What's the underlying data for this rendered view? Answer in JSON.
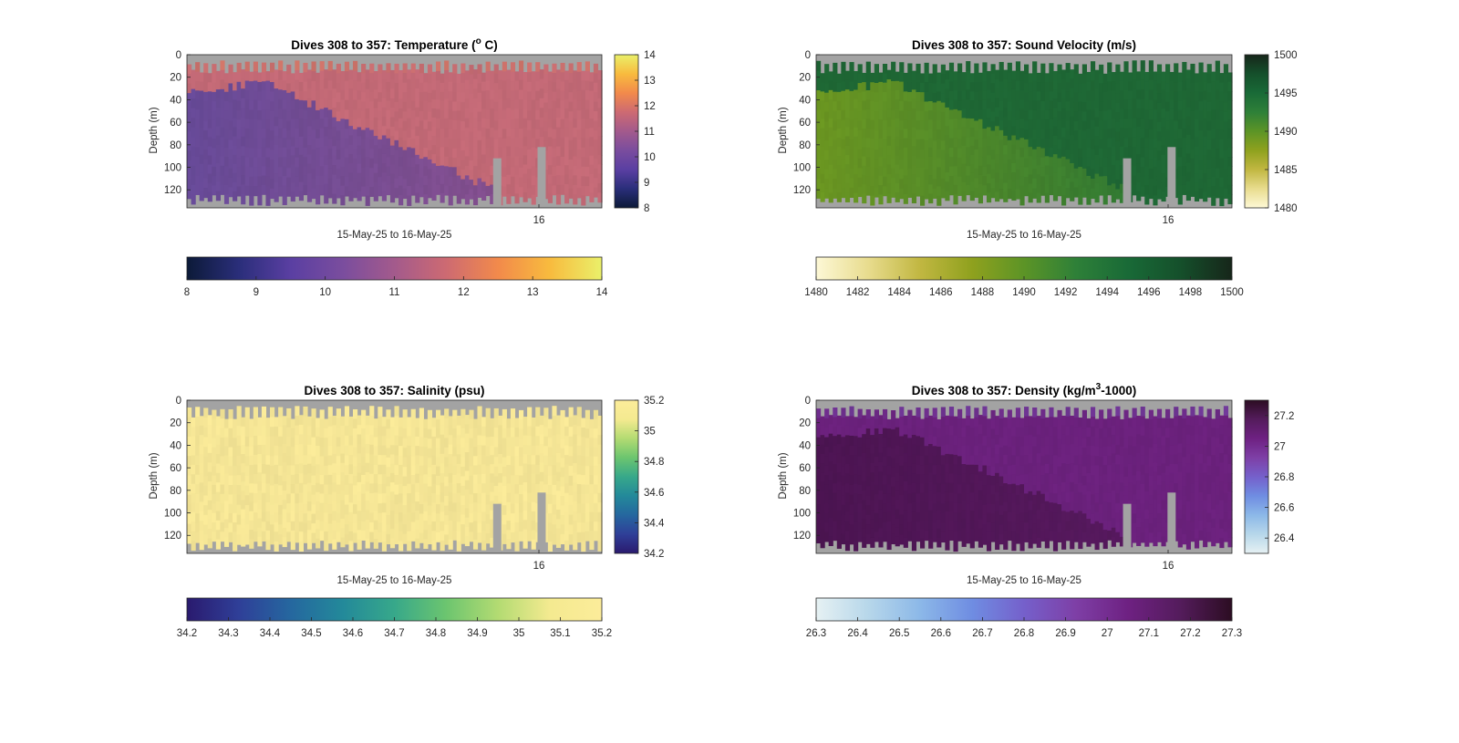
{
  "chart_data": [
    {
      "type": "heatmap",
      "title": "Dives 308 to 357: Temperature (",
      "title_sup": "o",
      "title_end": " C)",
      "ylabel": "Depth (m)",
      "xlabel": "15-May-25 to 16-May-25",
      "x_tick_labels": [
        "16"
      ],
      "y_ticks": [
        0,
        20,
        40,
        60,
        80,
        100,
        120
      ],
      "ylim": [
        0,
        136
      ],
      "colorbar_right_ticks": [
        "8",
        "9",
        "10",
        "11",
        "12",
        "13",
        "14"
      ],
      "colorbar_bottom_ticks": [
        "8",
        "9",
        "10",
        "11",
        "12",
        "13",
        "14"
      ],
      "clim": [
        8,
        14
      ],
      "colormap": [
        "#0c1a38",
        "#2a2e7a",
        "#5a3fa2",
        "#7a4d9e",
        "#a35a8c",
        "#cd6a72",
        "#f28a4b",
        "#f8bb3e",
        "#eaf06a"
      ],
      "field_colors": {
        "surface": "#f2904c",
        "upper": "#c86c79",
        "cold_lower": "#6a4c9c",
        "lower": "#8b5291"
      },
      "missing_color": "#a3a3a3"
    },
    {
      "type": "heatmap",
      "title": "Dives 308 to 357: Sound Velocity (m/s)",
      "ylabel": "Depth (m)",
      "xlabel": "15-May-25 to 16-May-25",
      "x_tick_labels": [
        "16"
      ],
      "y_ticks": [
        0,
        20,
        40,
        60,
        80,
        100,
        120
      ],
      "ylim": [
        0,
        136
      ],
      "colorbar_right_ticks": [
        "1480",
        "1485",
        "1490",
        "1495",
        "1500"
      ],
      "colorbar_bottom_ticks": [
        "1480",
        "1482",
        "1484",
        "1486",
        "1488",
        "1490",
        "1492",
        "1494",
        "1496",
        "1498",
        "1500"
      ],
      "clim": [
        1480,
        1500
      ],
      "colormap": [
        "#fdf8d6",
        "#e8dc8e",
        "#c1b741",
        "#8fa11e",
        "#5c9426",
        "#2e8038",
        "#196a37",
        "#15502b",
        "#16261a"
      ],
      "field_colors": {
        "surface": "#1c5a30",
        "upper": "#1f6a36",
        "cold_lower": "#6e9a22",
        "lower": "#2c7a36"
      },
      "missing_color": "#a3a3a3"
    },
    {
      "type": "heatmap",
      "title": "Dives 308 to 357: Salinity (psu)",
      "ylabel": "Depth (m)",
      "xlabel": "15-May-25 to 16-May-25",
      "x_tick_labels": [
        "16"
      ],
      "y_ticks": [
        0,
        20,
        40,
        60,
        80,
        100,
        120
      ],
      "ylim": [
        0,
        136
      ],
      "colorbar_right_ticks": [
        "34.2",
        "34.4",
        "34.6",
        "34.8",
        "35",
        "35.2"
      ],
      "colorbar_bottom_ticks": [
        "34.2",
        "34.3",
        "34.4",
        "34.5",
        "34.6",
        "34.7",
        "34.8",
        "34.9",
        "35",
        "35.1",
        "35.2"
      ],
      "clim": [
        34.2,
        35.2
      ],
      "colormap": [
        "#2a1a6e",
        "#2f3f98",
        "#25679f",
        "#23899a",
        "#37a88a",
        "#6cc56f",
        "#b3db72",
        "#f4ea90",
        "#fcec9a"
      ],
      "field_colors": {
        "surface": "#fcec9a",
        "upper": "#fcec9a",
        "cold_lower": "#fcec9a",
        "lower": "#fcec9a"
      },
      "missing_color": "#a3a3a3"
    },
    {
      "type": "heatmap",
      "title": "Dives 308 to 357: Density (kg/m",
      "title_sup": "3",
      "title_end": "-1000)",
      "ylabel": "Depth (m)",
      "xlabel": "15-May-25 to 16-May-25",
      "x_tick_labels": [
        "16"
      ],
      "y_ticks": [
        0,
        20,
        40,
        60,
        80,
        100,
        120
      ],
      "ylim": [
        0,
        136
      ],
      "colorbar_right_ticks": [
        "26.4",
        "26.6",
        "26.8",
        "27",
        "27.2"
      ],
      "colorbar_bottom_ticks": [
        "26.3",
        "26.4",
        "26.5",
        "26.6",
        "26.7",
        "26.8",
        "26.9",
        "27",
        "27.1",
        "27.2",
        "27.3"
      ],
      "clim": [
        26.3,
        27.3
      ],
      "colormap": [
        "#e6f1f3",
        "#b7d7ea",
        "#8cb8e8",
        "#6f8de2",
        "#7560cb",
        "#7e3fa6",
        "#6e2182",
        "#541c5c",
        "#2c0d22"
      ],
      "field_colors": {
        "surface": "#7a6ad6",
        "upper": "#6e2280",
        "cold_lower": "#4e1554",
        "lower": "#5a1a62"
      },
      "missing_color": "#a3a3a3"
    }
  ]
}
